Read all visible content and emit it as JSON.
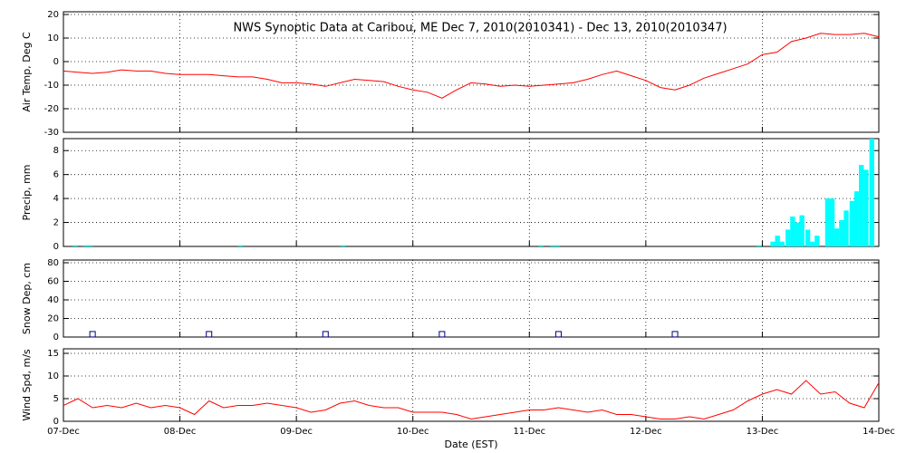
{
  "chart_data": [
    {
      "type": "line",
      "title": "NWS Synoptic Data at Caribou, ME   Dec  7, 2010(2010341) - Dec 13, 2010(2010347)",
      "ylabel": "Air Temp, Deg C",
      "xlim": [
        0,
        7
      ],
      "ylim": [
        -30,
        20
      ],
      "yticks": [
        -30,
        -20,
        -10,
        0,
        10,
        20
      ],
      "grid": true,
      "series": [
        {
          "color": "#ff0000",
          "x": [
            0,
            0.125,
            0.25,
            0.375,
            0.5,
            0.625,
            0.75,
            0.875,
            1,
            1.125,
            1.25,
            1.375,
            1.5,
            1.625,
            1.75,
            1.875,
            2,
            2.125,
            2.25,
            2.375,
            2.5,
            2.625,
            2.75,
            2.875,
            3,
            3.125,
            3.25,
            3.375,
            3.5,
            3.625,
            3.75,
            3.875,
            4,
            4.125,
            4.25,
            4.375,
            4.5,
            4.625,
            4.75,
            4.875,
            5,
            5.125,
            5.25,
            5.375,
            5.5,
            5.625,
            5.75,
            5.875,
            6,
            6.125,
            6.25,
            6.375,
            6.5,
            6.625,
            6.75,
            6.875,
            7
          ],
          "values": [
            -4,
            -4.5,
            -5,
            -4.5,
            -3.5,
            -4,
            -4,
            -5,
            -5.5,
            -5.5,
            -5.5,
            -6,
            -6.5,
            -6.5,
            -7.5,
            -9,
            -9,
            -9.5,
            -10.5,
            -9,
            -7.5,
            -8,
            -8.5,
            -10.5,
            -12,
            -13,
            -15.5,
            -12,
            -9,
            -9.5,
            -10.5,
            -10,
            -10.5,
            -10,
            -9.5,
            -9,
            -7.5,
            -5.5,
            -4,
            -6,
            -8,
            -11,
            -12,
            -10,
            -7,
            -5,
            -3,
            -1,
            3,
            4,
            8.5,
            10,
            12,
            11.5,
            11.5,
            12,
            10.5
          ]
        }
      ]
    },
    {
      "type": "bar",
      "ylabel": "Precip, mm",
      "xlim": [
        0,
        7
      ],
      "ylim": [
        0,
        9
      ],
      "yticks": [
        0,
        2,
        4,
        6,
        8
      ],
      "grid": true,
      "color": "#00ffff",
      "x": [
        0.1,
        0.19,
        0.23,
        1.52,
        2.4,
        4.1,
        4.2,
        4.24,
        5.97,
        6.09,
        6.13,
        6.17,
        6.22,
        6.26,
        6.3,
        6.34,
        6.39,
        6.43,
        6.47,
        6.56,
        6.6,
        6.64,
        6.68,
        6.72,
        6.77,
        6.81,
        6.85,
        6.89,
        6.94
      ],
      "values": [
        0.1,
        0.1,
        0.1,
        0.1,
        0.1,
        0.1,
        0.1,
        0.1,
        0.1,
        0.4,
        0.9,
        0.4,
        1.4,
        2.5,
        2,
        2.6,
        1.4,
        0.4,
        0.9,
        4,
        4,
        1.5,
        2.2,
        3,
        3.8,
        4.6,
        6.8,
        6.4,
        9
      ]
    },
    {
      "type": "scatter",
      "ylabel": "Snow Dep, cm",
      "xlim": [
        0,
        7
      ],
      "ylim": [
        0,
        80
      ],
      "yticks": [
        0,
        20,
        40,
        60,
        80
      ],
      "grid": true,
      "color": "#000080",
      "x": [
        0.25,
        1.25,
        2.25,
        3.25,
        4.25,
        5.25
      ],
      "values": [
        3,
        3,
        3,
        3,
        3,
        3
      ]
    },
    {
      "type": "line",
      "ylabel": "Wind Spd, m/s",
      "xlabel": "Date (EST)",
      "xlim": [
        0,
        7
      ],
      "ylim": [
        0,
        16
      ],
      "yticks": [
        0,
        5,
        10,
        15
      ],
      "grid": true,
      "xticks": [
        {
          "value": 0,
          "label": "07-Dec"
        },
        {
          "value": 1,
          "label": "08-Dec"
        },
        {
          "value": 2,
          "label": "09-Dec"
        },
        {
          "value": 3,
          "label": "10-Dec"
        },
        {
          "value": 4,
          "label": "11-Dec"
        },
        {
          "value": 5,
          "label": "12-Dec"
        },
        {
          "value": 6,
          "label": "13-Dec"
        },
        {
          "value": 7,
          "label": "14-Dec"
        }
      ],
      "series": [
        {
          "color": "#ff0000",
          "x": [
            0,
            0.125,
            0.25,
            0.375,
            0.5,
            0.625,
            0.75,
            0.875,
            1,
            1.125,
            1.25,
            1.375,
            1.5,
            1.625,
            1.75,
            1.875,
            2,
            2.125,
            2.25,
            2.375,
            2.5,
            2.625,
            2.75,
            2.875,
            3,
            3.125,
            3.25,
            3.375,
            3.5,
            3.625,
            3.75,
            3.875,
            4,
            4.125,
            4.25,
            4.375,
            4.5,
            4.625,
            4.75,
            4.875,
            5,
            5.125,
            5.25,
            5.375,
            5.5,
            5.625,
            5.75,
            5.875,
            6,
            6.125,
            6.25,
            6.375,
            6.5,
            6.625,
            6.75,
            6.875,
            7
          ],
          "values": [
            3.5,
            5,
            3,
            3.5,
            3,
            4,
            3,
            3.5,
            3,
            1.5,
            4.5,
            3,
            3.5,
            3.5,
            4,
            3.5,
            3,
            2,
            2.5,
            4,
            4.5,
            3.5,
            3,
            3,
            2,
            2,
            2,
            1.5,
            0.5,
            1,
            1.5,
            2,
            2.5,
            2.5,
            3,
            2.5,
            2,
            2.5,
            1.5,
            1.5,
            1,
            0.5,
            0.5,
            1,
            0.5,
            1.5,
            2.5,
            4.5,
            6,
            7,
            6,
            9,
            6,
            6.5,
            4,
            3,
            8.5
          ]
        }
      ]
    }
  ]
}
